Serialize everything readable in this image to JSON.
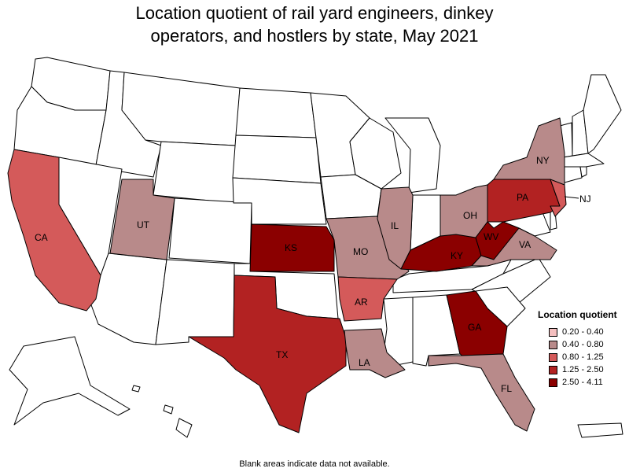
{
  "title_lines": [
    "Location quotient of rail yard engineers, dinkey",
    "operators, and hostlers by state, May 2021"
  ],
  "legend": {
    "title": "Location quotient",
    "items": [
      {
        "label": "0.20 - 0.40",
        "color": "#f4bfbf"
      },
      {
        "label": "0.40 - 0.80",
        "color": "#b88a8a"
      },
      {
        "label": "0.80 - 1.25",
        "color": "#d45a5a"
      },
      {
        "label": "1.25 - 2.50",
        "color": "#b22222"
      },
      {
        "label": "2.50 - 4.11",
        "color": "#8b0000"
      }
    ]
  },
  "footnote": "Blank areas indicate data not available.",
  "no_data_color": "#ffffff",
  "states": [
    {
      "code": "CA",
      "label": "CA",
      "class": "0.80 - 1.25"
    },
    {
      "code": "UT",
      "label": "UT",
      "class": "0.40 - 0.80"
    },
    {
      "code": "TX",
      "label": "TX",
      "class": "1.25 - 2.50"
    },
    {
      "code": "KS",
      "label": "KS",
      "class": "2.50 - 4.11"
    },
    {
      "code": "MO",
      "label": "MO",
      "class": "0.40 - 0.80"
    },
    {
      "code": "AR",
      "label": "AR",
      "class": "0.80 - 1.25"
    },
    {
      "code": "LA",
      "label": "LA",
      "class": "0.40 - 0.80"
    },
    {
      "code": "IL",
      "label": "IL",
      "class": "0.40 - 0.80"
    },
    {
      "code": "KY",
      "label": "KY",
      "class": "2.50 - 4.11"
    },
    {
      "code": "OH",
      "label": "OH",
      "class": "0.40 - 0.80"
    },
    {
      "code": "WV",
      "label": "WV",
      "class": "2.50 - 4.11"
    },
    {
      "code": "VA",
      "label": "VA",
      "class": "0.40 - 0.80"
    },
    {
      "code": "PA",
      "label": "PA",
      "class": "1.25 - 2.50"
    },
    {
      "code": "NY",
      "label": "NY",
      "class": "0.40 - 0.80"
    },
    {
      "code": "NJ",
      "label": "NJ",
      "class": "0.80 - 1.25"
    },
    {
      "code": "GA",
      "label": "GA",
      "class": "2.50 - 4.11"
    },
    {
      "code": "FL",
      "label": "FL",
      "class": "0.40 - 0.80"
    }
  ]
}
